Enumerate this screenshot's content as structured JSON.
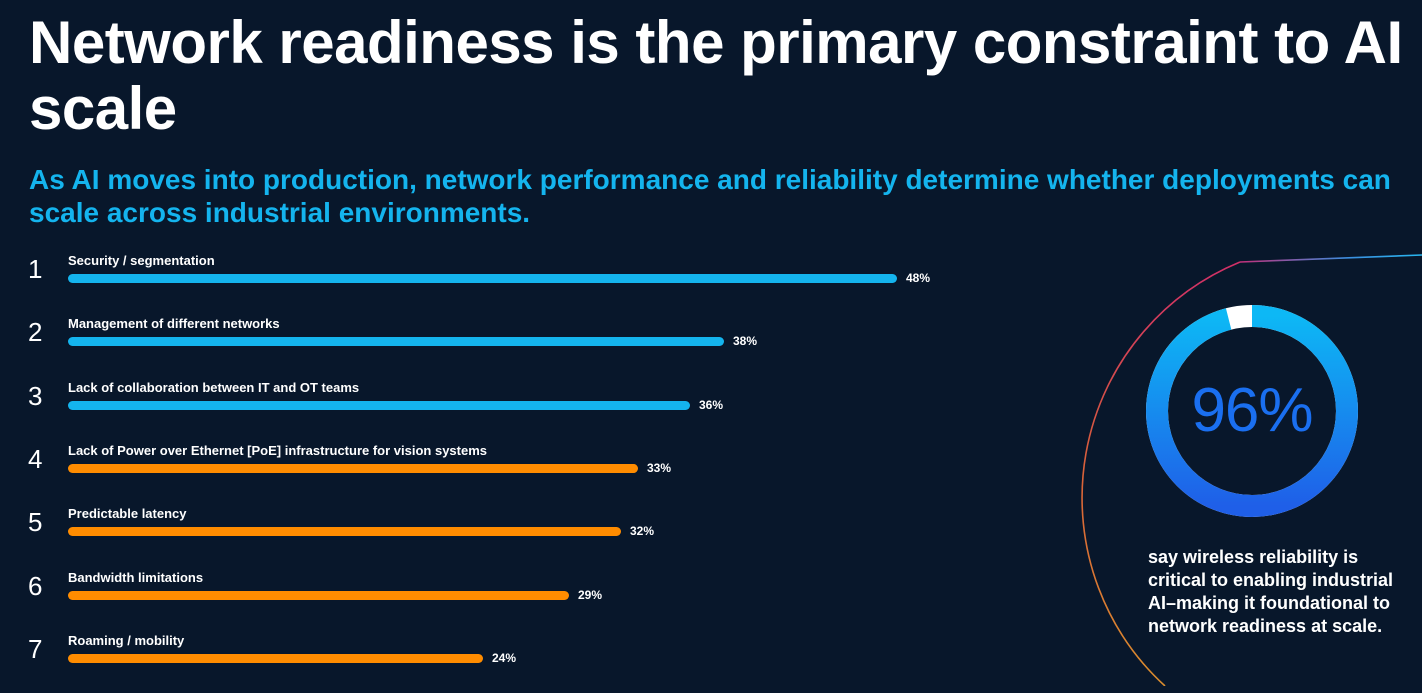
{
  "title": "Network readiness is the primary constraint to AI scale",
  "subtitle": "As AI moves into production, network performance and reliability determine whether deployments can scale across industrial environments.",
  "colors": {
    "background": "#08172b",
    "top_tier_bar": "#14b4ee",
    "lower_tier_bar": "#ff8c00",
    "donut_gradient_start": "#1f5fe8",
    "donut_gradient_end": "#0db8f5",
    "big_value": "#1a6ff0"
  },
  "chart_data": [
    {
      "type": "bar",
      "orientation": "horizontal",
      "title": "",
      "categories": [
        "Security / segmentation",
        "Management of different networks",
        "Lack of collaboration between IT and OT teams",
        "Lack of Power over Ethernet [PoE] infrastructure for vision systems",
        "Predictable latency",
        "Bandwidth limitations",
        "Roaming / mobility"
      ],
      "ranks": [
        "1",
        "2",
        "3",
        "4",
        "5",
        "6",
        "7"
      ],
      "values": [
        48,
        38,
        36,
        33,
        32,
        29,
        24
      ],
      "value_labels": [
        "48%",
        "38%",
        "36%",
        "33%",
        "32%",
        "29%",
        "24%"
      ],
      "series_color_groups": [
        "top_tier_bar",
        "top_tier_bar",
        "top_tier_bar",
        "lower_tier_bar",
        "lower_tier_bar",
        "lower_tier_bar",
        "lower_tier_bar"
      ],
      "xlim": [
        0,
        48
      ],
      "unit": "%",
      "grid": false,
      "legend": "none"
    },
    {
      "type": "pie",
      "style": "donut",
      "value": 96,
      "max": 100,
      "value_label": "96%",
      "description": "say wireless reliability is critical to enabling industrial AI–making it foundational to network readiness at scale."
    }
  ]
}
